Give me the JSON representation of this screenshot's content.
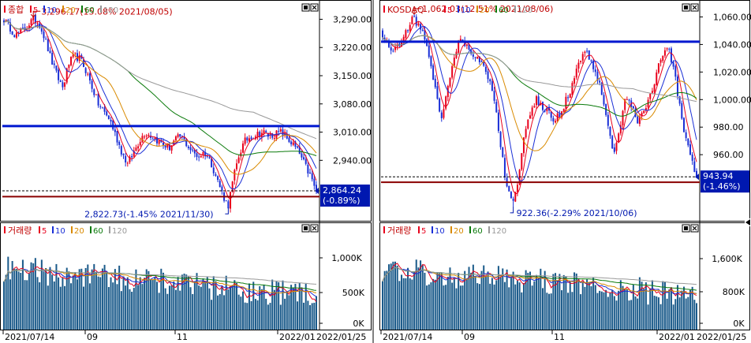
{
  "colors": {
    "up": "#e8001c",
    "down": "#1a2fd6",
    "ma5": "#e8001c",
    "ma10": "#1a2fd6",
    "ma20": "#d98a00",
    "ma60": "#0a7a0a",
    "ma120": "#999999",
    "hline_blue": "#0018d0",
    "hline_red": "#8a0000",
    "volume": "#1a5a8a",
    "text_red": "#c00000",
    "text_blue": "#0018b0",
    "badge_bg": "#0018b0"
  },
  "legend_ma": [
    "5",
    "10",
    "20",
    "60",
    "120"
  ],
  "x_axis": {
    "ticks": [
      "2021/07/14",
      "09",
      "11",
      "2022/01"
    ],
    "last_date": "2022/01/25"
  },
  "panels": [
    {
      "name": "종합",
      "price_ticks": [
        "3,290.00",
        "3,220.00",
        "3,150.00",
        "3,080.00",
        "3,010.00",
        "2,940.00"
      ],
      "price_tick_values": [
        3290,
        3220,
        3150,
        3080,
        3010,
        2940
      ],
      "ylim": [
        2790,
        3330
      ],
      "hlines": {
        "blue": 3025,
        "red": 2850,
        "dashed": 2864.24
      },
      "high_label": "3,296.17(15.08% 2021/08/05)",
      "low_label": "2,822.73(-1.45% 2021/11/30)",
      "last_price": "2,864.24",
      "last_change": "(-0.89%)",
      "volume_title": "거래량",
      "volume_ticks": [
        "1,000K",
        "500K",
        "0K"
      ],
      "volume_tick_values": [
        1000,
        500,
        0
      ],
      "volume_max": 1450
    },
    {
      "name": "KOSDAQ",
      "price_ticks": [
        "1,060.00",
        "1,040.00",
        "1,020.00",
        "1,000.00",
        "980.00",
        "960.00"
      ],
      "price_tick_values": [
        1060,
        1040,
        1020,
        1000,
        980,
        960
      ],
      "ylim": [
        912,
        1070
      ],
      "hlines": {
        "blue": 1042,
        "red": 940,
        "dashed": 943.94
      },
      "high_label": "1,062.03(12.51% 2021/08/06)",
      "low_label": "922.36(-2.29% 2021/10/06)",
      "last_price": "943.94",
      "last_change": "(-1.46%)",
      "volume_title": "거래량",
      "volume_ticks": [
        "1,600K",
        "800K",
        "0K"
      ],
      "volume_tick_values": [
        1600,
        800,
        0
      ],
      "volume_max": 2050
    }
  ],
  "chart_data": [
    {
      "type": "candlestick",
      "title": "종합",
      "x_range": [
        "2021/07/14",
        "2022/01/25"
      ],
      "high": {
        "value": 3296.17,
        "date": "2021/08/05",
        "change": "15.08%"
      },
      "low": {
        "value": 2822.73,
        "date": "2021/11/30",
        "change": "-1.45%"
      },
      "last": {
        "value": 2864.24,
        "change": "-0.89%"
      },
      "close_path": [
        3290,
        3270,
        3250,
        3260,
        3275,
        3290,
        3280,
        3240,
        3190,
        3150,
        3120,
        3180,
        3200,
        3190,
        3160,
        3120,
        3080,
        3060,
        3040,
        3000,
        2960,
        2930,
        2960,
        2990,
        3010,
        3000,
        2990,
        2980,
        2970,
        2990,
        3000,
        2980,
        2960,
        2950,
        2960,
        2940,
        2900,
        2860,
        2825,
        2900,
        2960,
        2990,
        3000,
        3005,
        3010,
        3000,
        3005,
        3010,
        2995,
        2980,
        2960,
        2930,
        2900,
        2864
      ],
      "ylim": [
        2790,
        3330
      ]
    },
    {
      "type": "candlestick",
      "title": "KOSDAQ",
      "x_range": [
        "2021/07/14",
        "2022/01/25"
      ],
      "high": {
        "value": 1062.03,
        "date": "2021/08/06",
        "change": "12.51%"
      },
      "low": {
        "value": 922.36,
        "date": "2021/10/06",
        "change": "-2.29%"
      },
      "last": {
        "value": 943.94,
        "change": "-1.46%"
      },
      "close_path": [
        1045,
        1040,
        1035,
        1042,
        1050,
        1060,
        1055,
        1045,
        1030,
        1005,
        985,
        1010,
        1030,
        1045,
        1040,
        1035,
        1030,
        1025,
        1015,
        995,
        965,
        935,
        925,
        945,
        975,
        990,
        1000,
        995,
        990,
        985,
        990,
        1000,
        1010,
        1025,
        1035,
        1030,
        1020,
        1005,
        985,
        960,
        980,
        1000,
        995,
        985,
        990,
        1000,
        1015,
        1030,
        1040,
        1025,
        1000,
        975,
        960,
        944
      ],
      "ylim": [
        912,
        1070
      ]
    }
  ]
}
